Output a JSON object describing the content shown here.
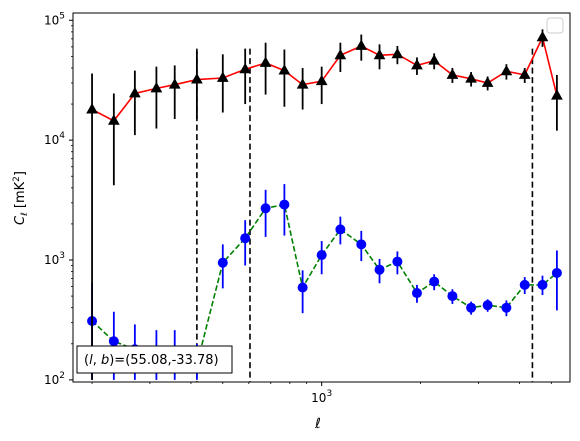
{
  "chart_data": {
    "type": "scatter",
    "xlabel": "ℓ",
    "ylabel": "C_ℓ [mK²]",
    "xscale": "log",
    "yscale": "log",
    "xlim": [
      175,
      5700
    ],
    "ylim": [
      96,
      115000
    ],
    "grid": false,
    "legend": "top-right, empty",
    "x_ticks": [
      {
        "value": 1000,
        "label": "10^3"
      }
    ],
    "y_ticks": [
      {
        "value": 100,
        "label": "10^2"
      },
      {
        "value": 1000,
        "label": "10^3"
      },
      {
        "value": 10000,
        "label": "10^4"
      },
      {
        "value": 100000,
        "label": "10^5"
      }
    ],
    "vlines": [
      417,
      605,
      4380
    ],
    "annotation": "(l, b)=(55.08,-33.78)",
    "series": [
      {
        "marker": "triangle",
        "color": "#000000",
        "line_color": "#ff0000",
        "line_style": "solid",
        "points": [
          {
            "x": 200,
            "y": 18000,
            "lo": 100,
            "hi": 36000
          },
          {
            "x": 233,
            "y": 14500,
            "lo": 4200,
            "hi": 24500
          },
          {
            "x": 270,
            "y": 24500,
            "lo": 11000,
            "hi": 38000
          },
          {
            "x": 314,
            "y": 27000,
            "lo": 12500,
            "hi": 41000
          },
          {
            "x": 357,
            "y": 29000,
            "lo": 15000,
            "hi": 42000
          },
          {
            "x": 417,
            "y": 32000,
            "lo": 15000,
            "hi": 55000
          },
          {
            "x": 500,
            "y": 33000,
            "lo": 17000,
            "hi": 52000
          },
          {
            "x": 585,
            "y": 39000,
            "lo": 20000,
            "hi": 58000
          },
          {
            "x": 675,
            "y": 44000,
            "lo": 24000,
            "hi": 65000
          },
          {
            "x": 770,
            "y": 38000,
            "lo": 19000,
            "hi": 57000
          },
          {
            "x": 875,
            "y": 29000,
            "lo": 18000,
            "hi": 40000
          },
          {
            "x": 1000,
            "y": 31000,
            "lo": 20000,
            "hi": 41000
          },
          {
            "x": 1140,
            "y": 51000,
            "lo": 37000,
            "hi": 65000
          },
          {
            "x": 1320,
            "y": 61000,
            "lo": 46000,
            "hi": 76000
          },
          {
            "x": 1500,
            "y": 51000,
            "lo": 39000,
            "hi": 63000
          },
          {
            "x": 1700,
            "y": 52000,
            "lo": 43000,
            "hi": 61000
          },
          {
            "x": 1950,
            "y": 42000,
            "lo": 35000,
            "hi": 49000
          },
          {
            "x": 2200,
            "y": 46000,
            "lo": 39000,
            "hi": 53000
          },
          {
            "x": 2500,
            "y": 35000,
            "lo": 30000,
            "hi": 40000
          },
          {
            "x": 2850,
            "y": 32500,
            "lo": 28000,
            "hi": 37000
          },
          {
            "x": 3200,
            "y": 30000,
            "lo": 26000,
            "hi": 34000
          },
          {
            "x": 3650,
            "y": 37500,
            "lo": 32000,
            "hi": 43000
          },
          {
            "x": 4150,
            "y": 35000,
            "lo": 30000,
            "hi": 40000
          },
          {
            "x": 4700,
            "y": 72000,
            "lo": 60000,
            "hi": 84000
          },
          {
            "x": 5200,
            "y": 23500,
            "lo": 12000,
            "hi": 35000
          }
        ]
      },
      {
        "marker": "circle",
        "color": "#0000ff",
        "line_color": "#008000",
        "line_style": "dashed",
        "points": [
          {
            "x": 200,
            "y": 310,
            "lo": 100,
            "hi": 640
          },
          {
            "x": 233,
            "y": 210,
            "lo": 100,
            "hi": 370
          },
          {
            "x": 270,
            "y": 180,
            "lo": 100,
            "hi": 290
          },
          {
            "x": 314,
            "y": 160,
            "lo": 100,
            "hi": 260
          },
          {
            "x": 357,
            "y": 150,
            "lo": 100,
            "hi": 260
          },
          {
            "x": 417,
            "y": 135,
            "lo": 100,
            "hi": 200
          },
          {
            "x": 500,
            "y": 950,
            "lo": 580,
            "hi": 1350
          },
          {
            "x": 585,
            "y": 1520,
            "lo": 900,
            "hi": 2150
          },
          {
            "x": 675,
            "y": 2700,
            "lo": 1560,
            "hi": 3850
          },
          {
            "x": 770,
            "y": 2900,
            "lo": 1600,
            "hi": 4300
          },
          {
            "x": 875,
            "y": 590,
            "lo": 360,
            "hi": 820
          },
          {
            "x": 1000,
            "y": 1100,
            "lo": 760,
            "hi": 1440
          },
          {
            "x": 1140,
            "y": 1800,
            "lo": 1350,
            "hi": 2300
          },
          {
            "x": 1320,
            "y": 1350,
            "lo": 980,
            "hi": 1750
          },
          {
            "x": 1500,
            "y": 830,
            "lo": 640,
            "hi": 1020
          },
          {
            "x": 1700,
            "y": 970,
            "lo": 760,
            "hi": 1180
          },
          {
            "x": 1950,
            "y": 530,
            "lo": 440,
            "hi": 620
          },
          {
            "x": 2200,
            "y": 660,
            "lo": 560,
            "hi": 760
          },
          {
            "x": 2500,
            "y": 500,
            "lo": 430,
            "hi": 570
          },
          {
            "x": 2850,
            "y": 400,
            "lo": 350,
            "hi": 450
          },
          {
            "x": 3200,
            "y": 420,
            "lo": 370,
            "hi": 470
          },
          {
            "x": 3650,
            "y": 400,
            "lo": 340,
            "hi": 460
          },
          {
            "x": 4150,
            "y": 620,
            "lo": 520,
            "hi": 720
          },
          {
            "x": 4700,
            "y": 620,
            "lo": 510,
            "hi": 740
          },
          {
            "x": 5200,
            "y": 780,
            "lo": 380,
            "hi": 1200
          }
        ]
      }
    ]
  }
}
